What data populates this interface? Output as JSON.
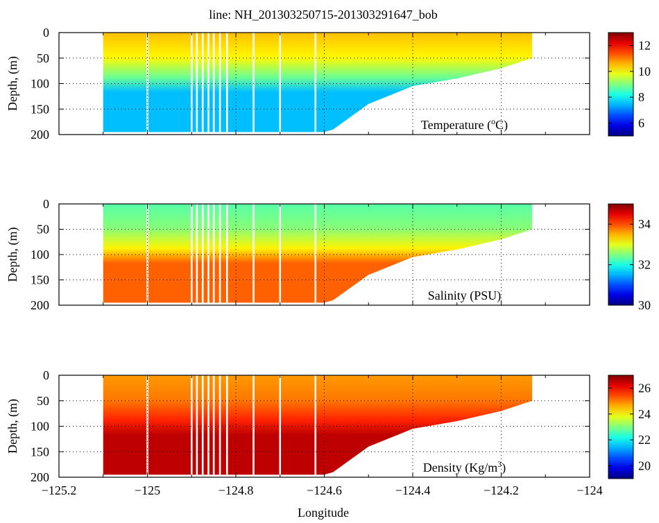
{
  "figure": {
    "title": "line: NH_201303250715-201303291647_bob",
    "xlabel": "Longitude"
  },
  "chart_data": [
    {
      "type": "heatmap",
      "panel": "temperature",
      "label_main": "Temperature (",
      "label_sup": "o",
      "label_tail": "C)",
      "ylabel": "Depth, (m)",
      "xlim": [
        -125.2,
        -124.0
      ],
      "ylim": [
        200,
        0
      ],
      "xticks": [
        -125.2,
        -125.0,
        -124.8,
        -124.6,
        -124.4,
        -124.2,
        -124.0
      ],
      "yticks": [
        0,
        50,
        100,
        150,
        200
      ],
      "grid": true,
      "colorbar": {
        "range": [
          5,
          13
        ],
        "ticks": [
          6,
          8,
          10,
          12
        ],
        "tick_labels": [
          "6",
          "8",
          "10",
          "12"
        ]
      },
      "surface_value": 10.5,
      "deep_value": 7.5,
      "section_lon_range": [
        -125.1,
        -124.13
      ],
      "bottom_depth_profile": {
        "lon": [
          -125.1,
          -124.6,
          -124.58,
          -124.5,
          -124.4,
          -124.3,
          -124.2,
          -124.13
        ],
        "depth": [
          195,
          195,
          190,
          140,
          105,
          90,
          70,
          50
        ]
      }
    },
    {
      "type": "heatmap",
      "panel": "salinity",
      "label_main": "Salinity (PSU)",
      "ylabel": "Depth, (m)",
      "xlim": [
        -125.2,
        -124.0
      ],
      "ylim": [
        200,
        0
      ],
      "xticks": [
        -125.2,
        -125.0,
        -124.8,
        -124.6,
        -124.4,
        -124.2,
        -124.0
      ],
      "yticks": [
        0,
        50,
        100,
        150,
        200
      ],
      "grid": true,
      "colorbar": {
        "range": [
          30,
          35
        ],
        "ticks": [
          30,
          32,
          34
        ],
        "tick_labels": [
          "30",
          "32",
          "34"
        ]
      },
      "surface_value": 32.3,
      "deep_value": 33.9,
      "section_lon_range": [
        -125.1,
        -124.13
      ],
      "bottom_depth_profile": {
        "lon": [
          -125.1,
          -124.6,
          -124.58,
          -124.5,
          -124.4,
          -124.3,
          -124.2,
          -124.13
        ],
        "depth": [
          195,
          195,
          190,
          140,
          105,
          90,
          70,
          50
        ]
      }
    },
    {
      "type": "heatmap",
      "panel": "density",
      "label_main": "Density (Kg/m",
      "label_sup": "3",
      "label_tail": ")",
      "ylabel": "Depth, (m)",
      "xlim": [
        -125.2,
        -124.0
      ],
      "ylim": [
        200,
        0
      ],
      "xticks": [
        -125.2,
        -125.0,
        -124.8,
        -124.6,
        -124.4,
        -124.2,
        -124.0
      ],
      "xtick_labels": [
        "−125.2",
        "−125",
        "−124.8",
        "−124.6",
        "−124.4",
        "−124.2",
        "−124"
      ],
      "yticks": [
        0,
        50,
        100,
        150,
        200
      ],
      "grid": true,
      "colorbar": {
        "range": [
          19,
          27
        ],
        "ticks": [
          20,
          22,
          24,
          26
        ],
        "tick_labels": [
          "20",
          "22",
          "24",
          "26"
        ]
      },
      "surface_value": 24.8,
      "deep_value": 26.5,
      "section_lon_range": [
        -125.1,
        -124.13
      ],
      "bottom_depth_profile": {
        "lon": [
          -125.1,
          -124.6,
          -124.58,
          -124.5,
          -124.4,
          -124.3,
          -124.2,
          -124.13
        ],
        "depth": [
          195,
          195,
          190,
          140,
          105,
          90,
          70,
          50
        ]
      }
    }
  ]
}
